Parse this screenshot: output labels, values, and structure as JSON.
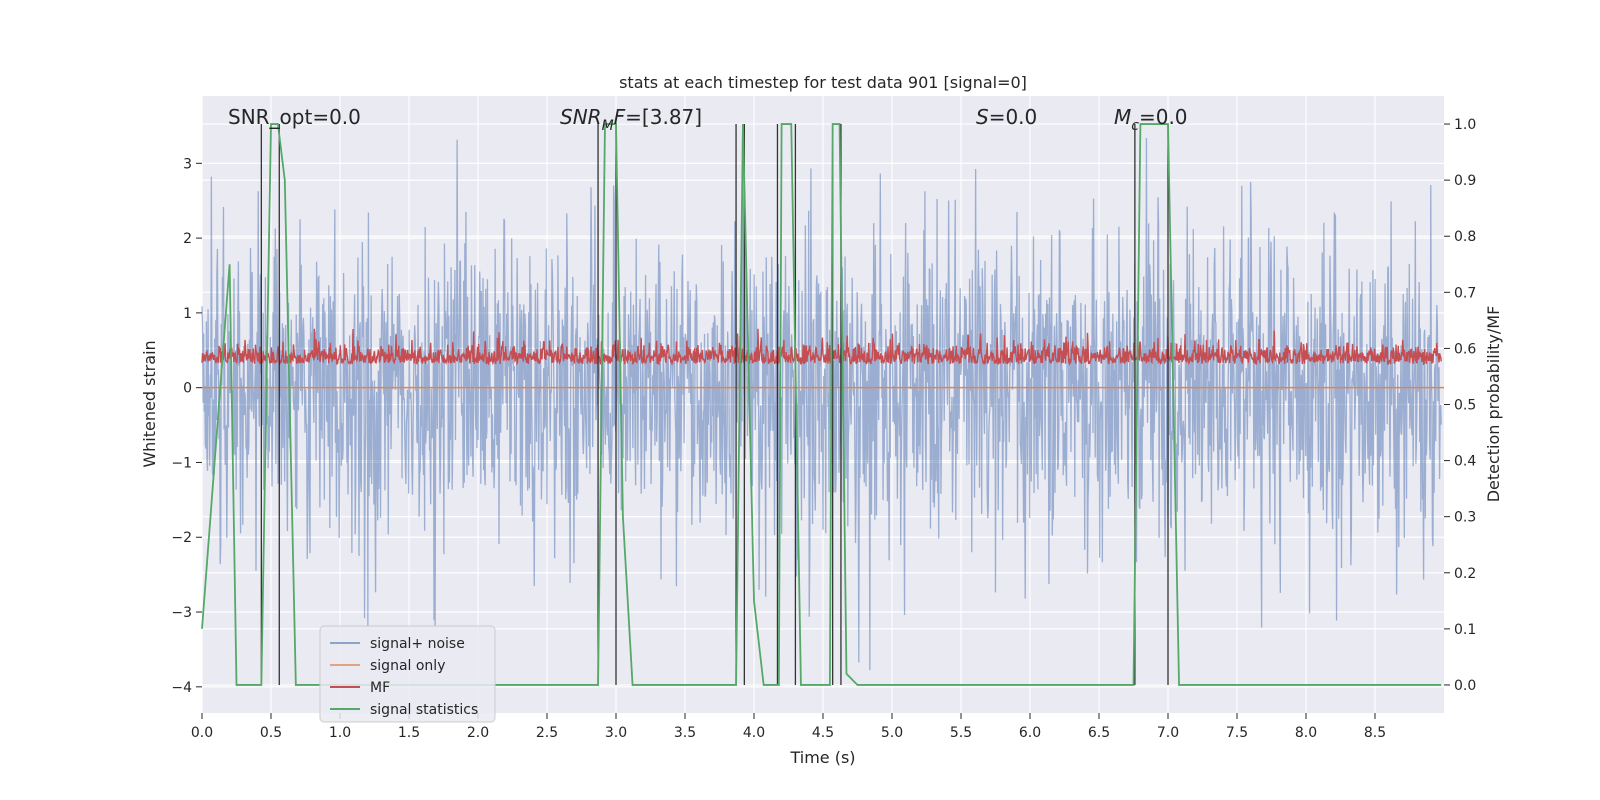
{
  "chart_data": {
    "type": "line",
    "title": "stats at each timestep for test data 901 [signal=0]",
    "xlabel": "Time (s)",
    "ylabel": "Whitened strain",
    "y2label": "Detection probability/MF",
    "xlim": [
      0.0,
      9.0
    ],
    "ylim": [
      -4.35,
      3.9
    ],
    "y2lim": [
      -0.05,
      1.05
    ],
    "xticks": [
      0.0,
      0.5,
      1.0,
      1.5,
      2.0,
      2.5,
      3.0,
      3.5,
      4.0,
      4.5,
      5.0,
      5.5,
      6.0,
      6.5,
      7.0,
      7.5,
      8.0,
      8.5
    ],
    "yticks": [
      -4,
      -3,
      -2,
      -1,
      0,
      1,
      2,
      3
    ],
    "y2ticks": [
      0.0,
      0.1,
      0.2,
      0.3,
      0.4,
      0.5,
      0.6,
      0.7,
      0.8,
      0.9,
      1.0
    ],
    "grid": true,
    "legend_position": "lower-left",
    "annotations": [
      {
        "id": "snr_opt",
        "prefix": "SNR_opt=0.0",
        "x": 0.19
      },
      {
        "id": "snr_mf",
        "base": "SNR",
        "sub": "M",
        "italic": "F",
        "suffix": "=[3.87]",
        "x": 2.6
      },
      {
        "id": "s",
        "italic": "S",
        "suffix": "=0.0",
        "x": 5.6
      },
      {
        "id": "mc",
        "base": "M",
        "sub": "c",
        "suffix": "=0.0",
        "x": 6.6
      }
    ],
    "colors": {
      "background": "#eaeaf2",
      "grid": "#ffffff",
      "signal_noise": "#4c72b0",
      "signal_only": "#dd8452",
      "mf": "#c44e52",
      "signal_statistics": "#55a868",
      "vline": "#333333"
    },
    "series": [
      {
        "name": "signal+ noise",
        "description_in_data_units": "whitened strain noise, roughly Gaussian with peaks between -3.9 and 3.3",
        "generator": {
          "points": 2250,
          "sigma": 1.05,
          "seed": 901
        }
      },
      {
        "name": "signal only",
        "x": [
          0.0,
          9.0
        ],
        "y": [
          0.0,
          0.0
        ]
      },
      {
        "name": "MF",
        "axis": "right",
        "description_in_data_units": "matched filter output, fluctuating mostly between 0.56 and 0.62",
        "generator": {
          "points": 2250,
          "base": 0.572,
          "spread": 0.018,
          "seed": 77
        }
      },
      {
        "name": "signal statistics",
        "axis": "right",
        "x": [
          0.0,
          0.2,
          0.25,
          0.43,
          0.5,
          0.55,
          0.6,
          0.68,
          2.87,
          2.92,
          3.0,
          3.05,
          3.12,
          3.87,
          3.92,
          4.0,
          4.07,
          4.18,
          4.2,
          4.27,
          4.34,
          4.55,
          4.57,
          4.62,
          4.67,
          4.75,
          6.75,
          6.8,
          7.0,
          7.08,
          8.98
        ],
        "y": [
          0.1,
          0.75,
          0.0,
          0.0,
          1.0,
          1.0,
          0.9,
          0.0,
          0.0,
          1.0,
          1.0,
          0.3,
          0.0,
          0.0,
          1.0,
          0.15,
          0.0,
          0.0,
          1.0,
          1.0,
          0.0,
          0.0,
          1.0,
          1.0,
          0.02,
          0.0,
          0.0,
          1.0,
          1.0,
          0.0,
          0.0
        ]
      }
    ],
    "vlines": [
      0.43,
      0.56,
      2.87,
      3.0,
      3.87,
      3.93,
      4.17,
      4.3,
      4.57,
      4.63,
      6.76,
      7.0
    ],
    "vlines_range": [
      0.0,
      1.0
    ]
  }
}
